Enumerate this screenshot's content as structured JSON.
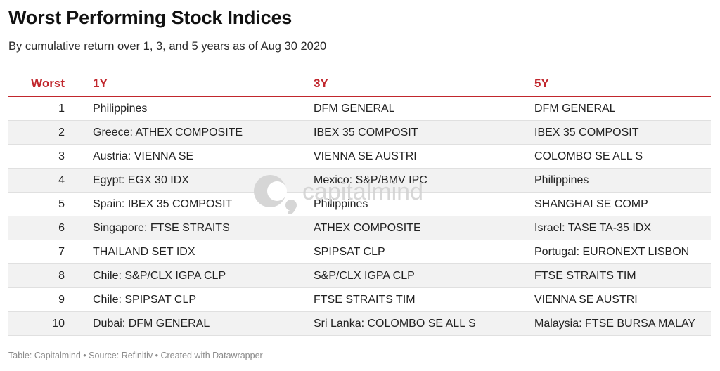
{
  "title": "Worst Performing Stock Indices",
  "subtitle": "By cumulative return over 1, 3, and 5 years as of Aug 30 2020",
  "footer": "Table: Capitalmind • Source: Refinitiv • Created with Datawrapper",
  "watermark": {
    "text": "capitalmind",
    "icon": "capitalmind-logo-icon"
  },
  "colors": {
    "accent": "#c1272d",
    "stripe": "#f2f2f2",
    "watermark": "#cfcfcf"
  },
  "chart_data": {
    "type": "table",
    "title": "Worst Performing Stock Indices",
    "subtitle": "By cumulative return over 1, 3, and 5 years as of Aug 30 2020",
    "columns": [
      "Worst",
      "1Y",
      "3Y",
      "5Y"
    ],
    "rows": [
      [
        "1",
        "Philippines",
        "DFM GENERAL",
        "DFM GENERAL"
      ],
      [
        "2",
        "Greece: ATHEX COMPOSITE",
        "IBEX 35 COMPOSIT",
        "IBEX 35 COMPOSIT"
      ],
      [
        "3",
        "Austria: VIENNA SE",
        "VIENNA SE AUSTRI",
        "COLOMBO SE ALL S"
      ],
      [
        "4",
        "Egypt: EGX 30 IDX",
        "Mexico: S&P/BMV IPC",
        "Philippines"
      ],
      [
        "5",
        "Spain: IBEX 35 COMPOSIT",
        "Philippines",
        "SHANGHAI SE COMP"
      ],
      [
        "6",
        "Singapore: FTSE STRAITS",
        "ATHEX COMPOSITE",
        "Israel: TASE TA-35 IDX"
      ],
      [
        "7",
        "THAILAND SET IDX",
        "SPIPSAT CLP",
        "Portugal: EURONEXT LISBON"
      ],
      [
        "8",
        "Chile: S&P/CLX IGPA CLP",
        "S&P/CLX IGPA CLP",
        "FTSE STRAITS TIM"
      ],
      [
        "9",
        "Chile: SPIPSAT CLP",
        "FTSE STRAITS TIM",
        "VIENNA SE AUSTRI"
      ],
      [
        "10",
        "Dubai: DFM GENERAL",
        "Sri Lanka: COLOMBO SE ALL S",
        "Malaysia: FTSE BURSA MALAY"
      ]
    ]
  }
}
